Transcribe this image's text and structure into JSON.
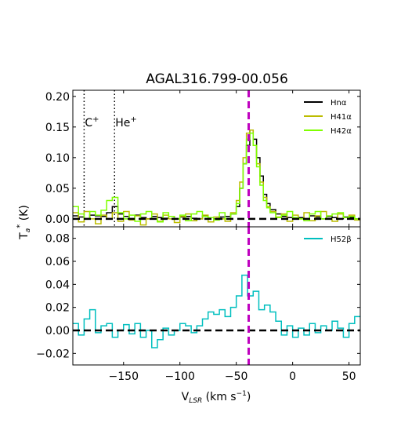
{
  "chart_data": {
    "type": "line",
    "title": "AGAL316.799-00.056",
    "xlabel_main": "V",
    "xlabel_sub": "LSR",
    "xlabel_unit": " (km s",
    "xlabel_exp": "−1",
    "xlabel_close": ")",
    "ylabel_main": "T",
    "ylabel_sub": "a",
    "ylabel_star": "*",
    "ylabel_unit": " (K)",
    "xlim": [
      -195,
      60
    ],
    "x_ticks": [
      -150,
      -100,
      -50,
      0,
      50
    ],
    "x_tick_labels": [
      "−150",
      "−100",
      "−50",
      "0",
      "50"
    ],
    "vline_velocity": -39,
    "vline_color": "#bf00bf",
    "rrl_markers": [
      {
        "label": "C",
        "superscript": "+",
        "x": -185
      },
      {
        "label": "He",
        "superscript": "+",
        "x": -158
      }
    ],
    "panels": [
      {
        "ylim": [
          -0.013,
          0.21
        ],
        "y_ticks": [
          0.0,
          0.05,
          0.1,
          0.15,
          0.2
        ],
        "y_tick_labels": [
          "0.00",
          "0.05",
          "0.10",
          "0.15",
          "0.20"
        ],
        "series": [
          {
            "name": "Hnα",
            "color": "#000000",
            "x": [
              -195,
              -190,
              -185,
              -180,
              -175,
              -170,
              -165,
              -160,
              -155,
              -150,
              -145,
              -140,
              -135,
              -130,
              -125,
              -120,
              -115,
              -110,
              -105,
              -100,
              -95,
              -90,
              -85,
              -80,
              -75,
              -70,
              -65,
              -60,
              -55,
              -50,
              -47,
              -44,
              -41,
              -38,
              -35,
              -32,
              -29,
              -26,
              -23,
              -20,
              -15,
              -10,
              -5,
              0,
              5,
              10,
              15,
              20,
              25,
              30,
              35,
              40,
              45,
              50,
              55
            ],
            "values": [
              0.005,
              0.003,
              0.0,
              0.006,
              0.005,
              0.004,
              0.01,
              0.02,
              0.008,
              0.004,
              0.0,
              0.006,
              0.002,
              0.0,
              0.004,
              0.002,
              0.001,
              0.004,
              0.0,
              0.003,
              0.004,
              0.001,
              0.0,
              0.005,
              0.002,
              0.0,
              0.003,
              0.004,
              0.008,
              0.02,
              0.05,
              0.09,
              0.12,
              0.145,
              0.13,
              0.1,
              0.07,
              0.04,
              0.025,
              0.015,
              0.008,
              0.004,
              0.002,
              0.0,
              0.002,
              0.0,
              0.005,
              0.003,
              0.0,
              0.004,
              0.002,
              0.0,
              0.003,
              0.002,
              0.0
            ]
          },
          {
            "name": "H41α",
            "color": "#bcbc00",
            "x": [
              -195,
              -190,
              -185,
              -180,
              -175,
              -170,
              -165,
              -160,
              -155,
              -150,
              -145,
              -140,
              -135,
              -130,
              -125,
              -120,
              -115,
              -110,
              -105,
              -100,
              -95,
              -90,
              -85,
              -80,
              -75,
              -70,
              -65,
              -60,
              -55,
              -50,
              -47,
              -44,
              -41,
              -38,
              -35,
              -32,
              -29,
              -26,
              -23,
              -20,
              -15,
              -10,
              -5,
              0,
              5,
              10,
              15,
              20,
              25,
              30,
              35,
              40,
              45,
              50,
              55
            ],
            "values": [
              0.01,
              -0.005,
              0.012,
              0.0,
              -0.008,
              0.006,
              0.0,
              0.01,
              -0.004,
              0.012,
              -0.002,
              0.005,
              -0.01,
              0.0,
              0.008,
              -0.004,
              0.006,
              0.0,
              -0.006,
              0.004,
              0.008,
              -0.003,
              0.0,
              0.006,
              -0.005,
              0.003,
              0.0,
              -0.004,
              0.01,
              0.03,
              0.06,
              0.1,
              0.14,
              0.145,
              0.12,
              0.09,
              0.06,
              0.035,
              0.02,
              0.012,
              0.003,
              0.008,
              -0.004,
              0.006,
              0.0,
              0.01,
              -0.003,
              0.005,
              0.012,
              0.0,
              -0.004,
              0.008,
              0.002,
              0.006,
              -0.002
            ]
          },
          {
            "name": "H42α",
            "color": "#7fff00",
            "x": [
              -195,
              -190,
              -185,
              -180,
              -175,
              -170,
              -165,
              -160,
              -155,
              -150,
              -145,
              -140,
              -135,
              -130,
              -125,
              -120,
              -115,
              -110,
              -105,
              -100,
              -95,
              -90,
              -85,
              -80,
              -75,
              -70,
              -65,
              -60,
              -55,
              -50,
              -47,
              -44,
              -41,
              -38,
              -35,
              -32,
              -29,
              -26,
              -23,
              -20,
              -15,
              -10,
              -5,
              0,
              5,
              10,
              15,
              20,
              25,
              30,
              35,
              40,
              45,
              50,
              55
            ],
            "values": [
              0.02,
              0.008,
              0.0,
              0.012,
              0.006,
              0.014,
              0.03,
              0.035,
              0.01,
              0.0,
              0.006,
              -0.004,
              0.008,
              0.012,
              0.0,
              -0.005,
              0.01,
              0.004,
              0.0,
              0.006,
              -0.003,
              0.008,
              0.012,
              0.004,
              0.002,
              -0.002,
              0.01,
              0.0,
              0.008,
              0.025,
              0.05,
              0.09,
              0.13,
              0.14,
              0.12,
              0.085,
              0.055,
              0.03,
              0.018,
              0.01,
              0.002,
              0.006,
              0.012,
              0.002,
              0.0,
              -0.003,
              0.008,
              0.012,
              0.0,
              0.005,
              0.008,
              0.01,
              0.002,
              0.004,
              0.0
            ]
          }
        ]
      },
      {
        "ylim": [
          -0.03,
          0.09
        ],
        "y_ticks": [
          -0.02,
          0.0,
          0.02,
          0.04,
          0.06,
          0.08
        ],
        "y_tick_labels": [
          "−0.02",
          "0.00",
          "0.02",
          "0.04",
          "0.06",
          "0.08"
        ],
        "series": [
          {
            "name": "H52β",
            "color": "#00bfbf",
            "x": [
              -195,
              -190,
              -185,
              -180,
              -175,
              -170,
              -165,
              -160,
              -155,
              -150,
              -145,
              -140,
              -135,
              -130,
              -125,
              -120,
              -115,
              -110,
              -105,
              -100,
              -95,
              -90,
              -85,
              -80,
              -75,
              -70,
              -65,
              -60,
              -55,
              -50,
              -45,
              -40,
              -35,
              -30,
              -25,
              -20,
              -15,
              -10,
              -5,
              0,
              5,
              10,
              15,
              20,
              25,
              30,
              35,
              40,
              45,
              50,
              55
            ],
            "values": [
              0.006,
              -0.004,
              0.01,
              0.018,
              -0.002,
              0.004,
              0.006,
              -0.006,
              0.0,
              0.005,
              -0.003,
              0.006,
              -0.006,
              0.0,
              -0.015,
              -0.008,
              0.002,
              -0.004,
              0.0,
              0.006,
              0.004,
              -0.002,
              0.004,
              0.01,
              0.016,
              0.014,
              0.018,
              0.012,
              0.02,
              0.03,
              0.048,
              0.03,
              0.034,
              0.018,
              0.022,
              0.016,
              0.008,
              -0.004,
              0.004,
              -0.006,
              0.002,
              -0.004,
              0.006,
              -0.002,
              0.004,
              0.0,
              0.008,
              0.002,
              -0.006,
              0.006,
              0.012
            ]
          }
        ]
      }
    ]
  }
}
